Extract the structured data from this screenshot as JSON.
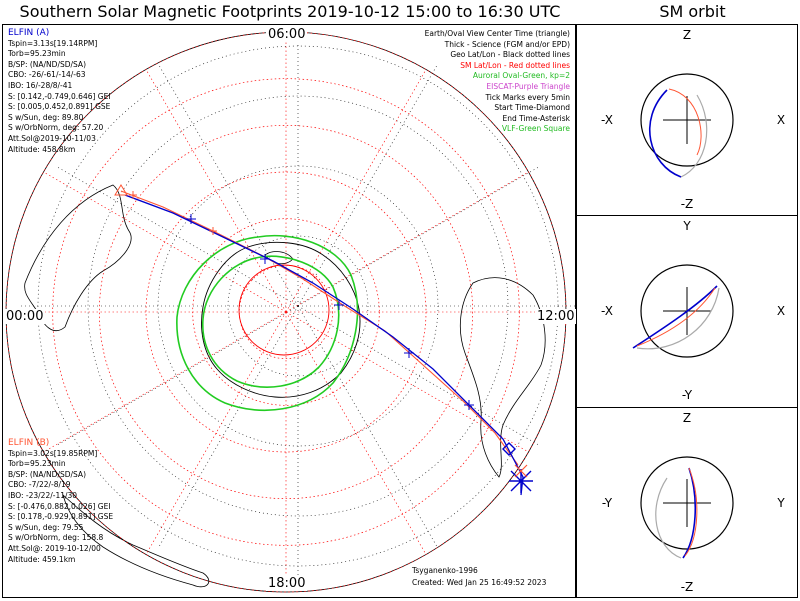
{
  "title": "Southern Solar Magnetic Footprints 2019-10-12 15:00 to 16:30 UTC",
  "sm_orbit_title": "SM orbit",
  "elfin_a": {
    "name": "ELFIN (A)",
    "color": "#0000cc",
    "lines": [
      "Tspin=3.13s[19.14RPM]",
      "Torb=95.23min",
      "B/SP: (NA/ND/SD/SA)",
      "CBO: -26/-61/-14/-63",
      "IBO: 16/-28/8/-41",
      "S: [0.142,-0.749,0.646] GEI",
      "S: [0.005,0.452,0.891] GSE",
      "S w/Sun, deg: 89.80",
      "S w/OrbNorm, deg: 57.20",
      "Att.Sol@2019-10-11/03",
      "Altitude: 458.8km"
    ]
  },
  "elfin_b": {
    "name": "ELFIN (B)",
    "color": "#ff5533",
    "lines": [
      "Tspin=3.02s[19.85RPM]",
      "Torb=95.23min",
      "B/SP: (NA/ND/SD/SA)",
      "CBO: -7/22/-8/19",
      "IBO: -23/22/-11/30",
      "S: [-0.476,0.882,0.026] GEI",
      "S: [0.178,-0.929,0.891] GSE",
      "S w/Sun, deg: 79.55",
      "S w/OrbNorm, deg: 158.8",
      "Att.Sol@: 2019-10-12/00",
      "Altitude: 459.1km"
    ]
  },
  "legend": [
    {
      "text": "Earth/Oval View Center Time (triangle)",
      "color": "#000000"
    },
    {
      "text": "Thick - Science (FGM and/or EPD)",
      "color": "#000000"
    },
    {
      "text": "Geo Lat/Lon - Black dotted lines",
      "color": "#000000"
    },
    {
      "text": "SM Lat/Lon - Red dotted lines",
      "color": "#ff0000"
    },
    {
      "text": "Auroral Oval-Green, kp=2",
      "color": "#22bb22"
    },
    {
      "text": "EISCAT-Purple Triangle",
      "color": "#cc44cc"
    },
    {
      "text": "Tick Marks every 5min",
      "color": "#000000"
    },
    {
      "text": "Start Time-Diamond",
      "color": "#000000"
    },
    {
      "text": "End Time-Asterisk",
      "color": "#000000"
    },
    {
      "text": "VLF-Green Square",
      "color": "#22bb22"
    }
  ],
  "clock_labels": {
    "top": "06:00",
    "bottom": "18:00",
    "left": "00:00",
    "right": "12:00"
  },
  "footer": {
    "model": "Tsyganenko-1996",
    "created": "Created: Wed Jan 25 16:49:52 2023"
  },
  "sm_panels": [
    {
      "top": "Z",
      "bottom": "-Z",
      "left": "-X",
      "right": "X"
    },
    {
      "top": "Y",
      "bottom": "-Y",
      "left": "-X",
      "right": "X"
    },
    {
      "top": "Z",
      "bottom": "-Z",
      "left": "-Y",
      "right": "Y"
    }
  ],
  "chart_data": {
    "type": "polar-map",
    "title": "Southern Solar Magnetic Footprints 2019-10-12 15:00 to 16:30 UTC",
    "center": "South SM pole",
    "time_range": [
      "2019-10-12 15:00",
      "2019-10-12 16:30"
    ],
    "sm_latitude_circles_deg": [
      -80,
      -70,
      -60,
      -50,
      -40,
      -30
    ],
    "mlt_labels": [
      "00:00",
      "06:00",
      "12:00",
      "18:00"
    ],
    "kp": 2,
    "series": [
      {
        "name": "ELFIN (A)",
        "color": "#0000cc",
        "tick_interval_min": 5
      },
      {
        "name": "ELFIN (B)",
        "color": "#ff5533",
        "tick_interval_min": 5
      }
    ]
  }
}
